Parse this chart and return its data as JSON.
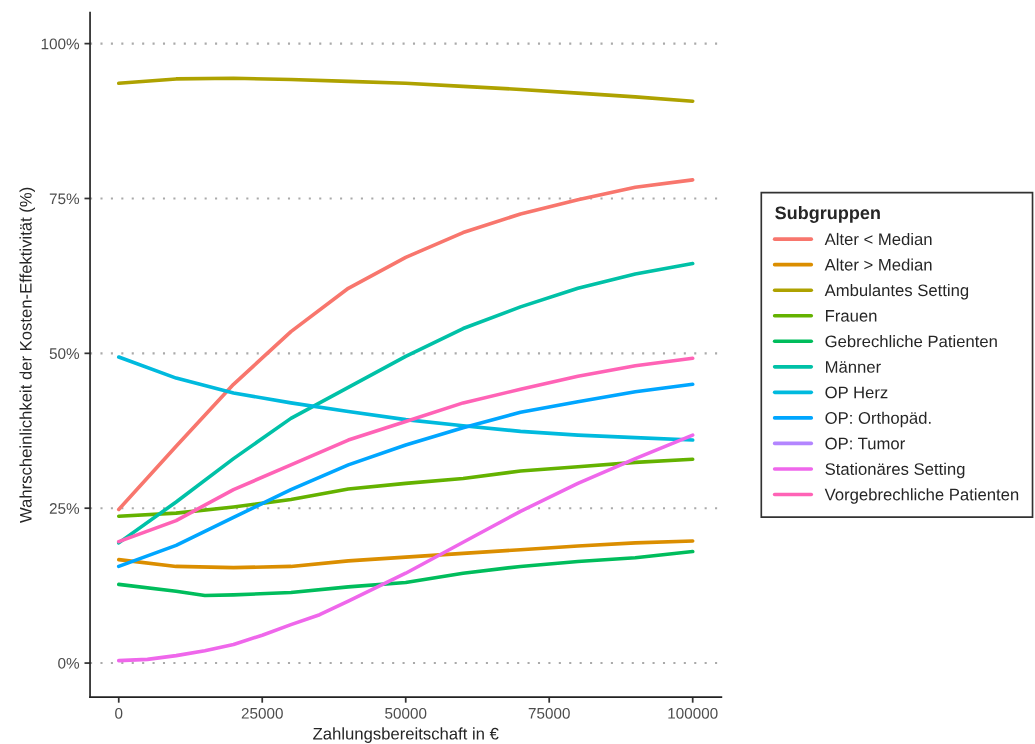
{
  "chart_data": {
    "type": "line",
    "xlabel": "Zahlungsbereitschaft in €",
    "ylabel": "Wahrscheinlichkeit der Kosten-Effektivität (%)",
    "legend_title": "Subgruppen",
    "x": [
      0,
      10000,
      20000,
      30000,
      40000,
      50000,
      60000,
      70000,
      80000,
      90000,
      100000
    ],
    "series": [
      {
        "name": "Alter < Median",
        "color": "#f8766d",
        "values": [
          24.8,
          35,
          45,
          53.5,
          60.5,
          65.5,
          69.5,
          72.5,
          74.8,
          76.8,
          78
        ]
      },
      {
        "name": "Alter > Median",
        "color": "#db8e00",
        "values": [
          16.7,
          15.6,
          15.4,
          15.6,
          16.5,
          17.1,
          17.7,
          18.3,
          18.9,
          19.4,
          19.7
        ]
      },
      {
        "name": "Ambulantes Setting",
        "color": "#aea200",
        "values": [
          93.6,
          94.3,
          94.4,
          94.2,
          93.9,
          93.6,
          93.1,
          92.6,
          92.0,
          91.4,
          90.7
        ]
      },
      {
        "name": "Frauen",
        "color": "#64b200",
        "values": [
          23.7,
          24.2,
          25.2,
          26.4,
          28.1,
          29,
          29.8,
          31,
          31.7,
          32.4,
          32.9
        ]
      },
      {
        "name": "Gebrechliche Patienten",
        "color": "#00bd5c",
        "x": [
          0,
          10000,
          15000,
          20000,
          30000,
          40000,
          50000,
          60000,
          70000,
          80000,
          90000,
          100000
        ],
        "values": [
          12.7,
          11.6,
          10.9,
          11.0,
          11.4,
          12.3,
          13.0,
          14.5,
          15.6,
          16.4,
          17.0,
          18.0
        ]
      },
      {
        "name": "Männer",
        "color": "#00c1a7",
        "values": [
          19.4,
          26,
          33,
          39.5,
          44.5,
          49.5,
          54,
          57.5,
          60.5,
          62.8,
          64.5
        ]
      },
      {
        "name": "OP Herz",
        "color": "#00bade",
        "values": [
          49.4,
          46,
          43.6,
          42,
          40.6,
          39.3,
          38.3,
          37.4,
          36.8,
          36.4,
          36.0
        ]
      },
      {
        "name": "OP: Orthopäd.",
        "color": "#00a6ff",
        "values": [
          15.6,
          19,
          23.5,
          28,
          32,
          35.2,
          38,
          40.5,
          42.2,
          43.8,
          45
        ]
      },
      {
        "name": "OP: Tumor",
        "color": "#b385ff",
        "values": [
          null,
          null,
          null,
          null,
          null,
          null,
          null,
          null,
          null,
          null,
          null
        ]
      },
      {
        "name": "Stationäres Setting",
        "color": "#ef67eb",
        "x": [
          0,
          5000,
          10000,
          15000,
          20000,
          25000,
          30000,
          35000,
          40000,
          50000,
          60000,
          70000,
          80000,
          90000,
          100000
        ],
        "values": [
          0.4,
          0.6,
          1.2,
          2.0,
          3.0,
          4.5,
          6.2,
          7.8,
          10,
          14.5,
          19.5,
          24.5,
          29,
          33,
          36.8
        ]
      },
      {
        "name": "Vorgebrechliche Patienten",
        "color": "#ff63b6",
        "values": [
          19.6,
          23,
          28,
          32,
          36,
          39,
          42,
          44.2,
          46.3,
          48,
          49.2
        ]
      }
    ],
    "xlim": [
      -5000,
      105000
    ],
    "xticks": [
      0,
      25000,
      50000,
      75000,
      100000
    ],
    "ylim": [
      -5.5,
      105
    ],
    "yticks": [
      {
        "value": 0,
        "label": "0%"
      },
      {
        "value": 25,
        "label": "25%"
      },
      {
        "value": 50,
        "label": "50%"
      },
      {
        "value": 75,
        "label": "75%"
      },
      {
        "value": 100,
        "label": "100%"
      }
    ],
    "grid": "y",
    "legend": "right",
    "line_style": "solid",
    "marker": "none"
  }
}
